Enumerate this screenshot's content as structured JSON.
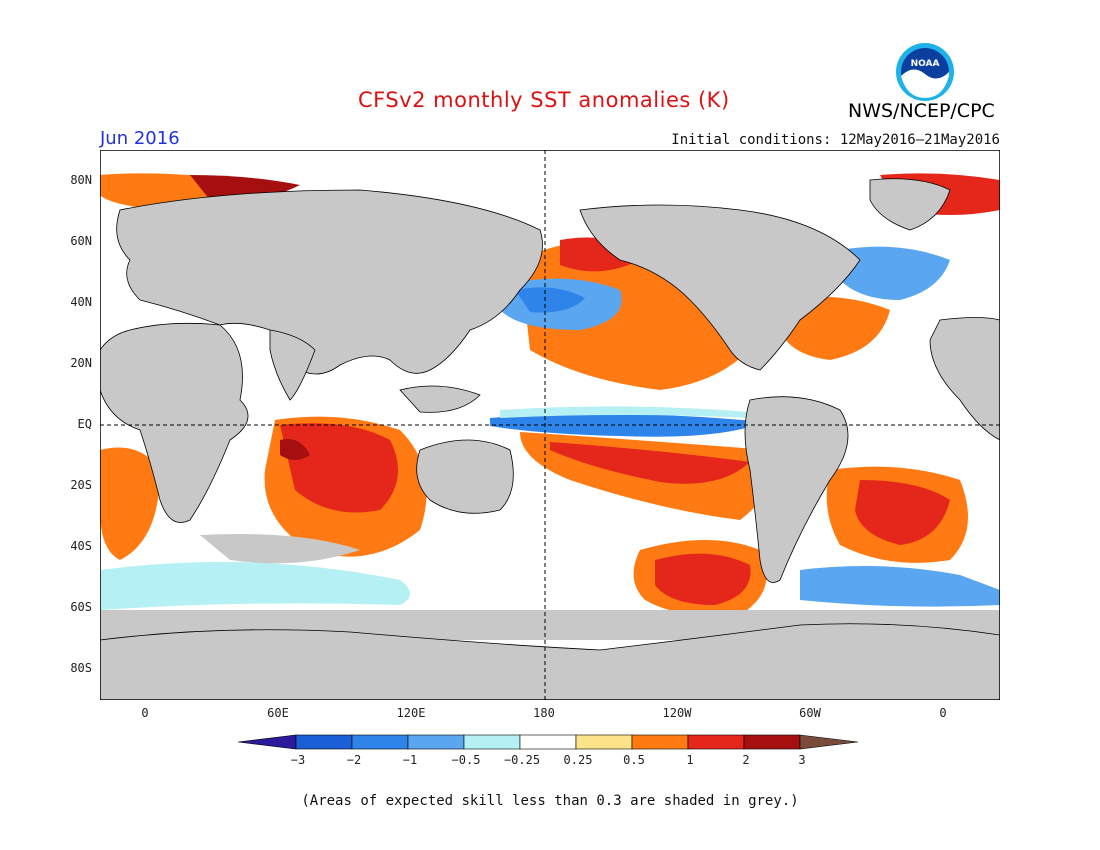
{
  "header": {
    "title": "CFSv2 monthly SST anomalies (K)",
    "org": "NWS/NCEP/CPC",
    "month": "Jun 2016",
    "initial_conditions": "Initial conditions: 12May2016–21May2016",
    "logo_text": "NOAA"
  },
  "map": {
    "projection": "equirectangular",
    "lon_range": [
      -20,
      360
    ],
    "lat_range": [
      -90,
      90
    ],
    "center_line_lon": 180,
    "equator_dashed": true,
    "land_color": "#c8c8c8",
    "y_ticks": [
      "80N",
      "60N",
      "40N",
      "20N",
      "EQ",
      "20S",
      "40S",
      "60S",
      "80S"
    ],
    "x_ticks": [
      "0",
      "60E",
      "120E",
      "180",
      "120W",
      "60W",
      "0"
    ]
  },
  "colorbar": {
    "labels": [
      "−3",
      "−2",
      "−1",
      "−0.5",
      "−0.25",
      "0.25",
      "0.5",
      "1",
      "2",
      "3"
    ],
    "colors": [
      "#2b1a9b",
      "#1a5fd6",
      "#2e84e8",
      "#5aa6f0",
      "#b4f0f4",
      "#ffffff",
      "#fde38a",
      "#ff7a12",
      "#e5261a",
      "#a50f0f",
      "#7a4a3a"
    ]
  },
  "footnote": "(Areas of expected skill less than 0.3 are shaded in grey.)"
}
